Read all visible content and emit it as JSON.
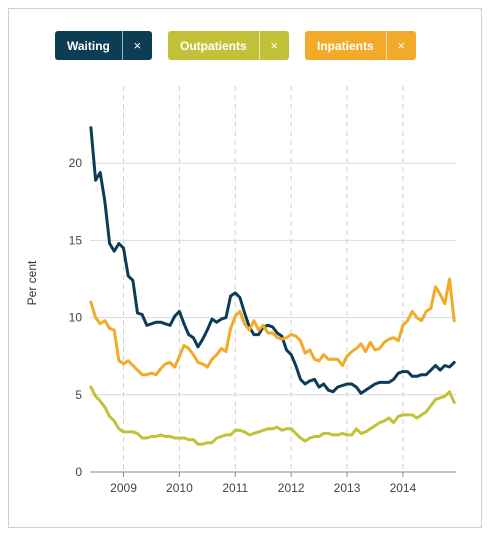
{
  "legend": {
    "items": [
      {
        "label": "Waiting",
        "close": "×",
        "color": "#0d3c55"
      },
      {
        "label": "Outpatients",
        "close": "×",
        "color": "#c2c23a"
      },
      {
        "label": "Inpatients",
        "close": "×",
        "color": "#f2aa2a"
      }
    ]
  },
  "chart_data": {
    "type": "line",
    "ylabel": "Per cent",
    "ylim": [
      0,
      25
    ],
    "yticks": [
      0,
      5,
      10,
      15,
      20
    ],
    "xlim": [
      2008.4,
      2014.95
    ],
    "xticks": [
      2009,
      2010,
      2011,
      2012,
      2013,
      2014
    ],
    "xtick_labels": [
      "2009",
      "2010",
      "2011",
      "2012",
      "2013",
      "2014"
    ],
    "grid": "horizontal solid, vertical dashed at year ticks",
    "series": [
      {
        "name": "Waiting",
        "color": "#0d3c55",
        "x": [
          2008.417,
          2008.5,
          2008.583,
          2008.667,
          2008.75,
          2008.833,
          2008.917,
          2009.0,
          2009.083,
          2009.167,
          2009.25,
          2009.333,
          2009.417,
          2009.5,
          2009.583,
          2009.667,
          2009.75,
          2009.833,
          2009.917,
          2010.0,
          2010.083,
          2010.167,
          2010.25,
          2010.333,
          2010.417,
          2010.5,
          2010.583,
          2010.667,
          2010.75,
          2010.833,
          2010.917,
          2011.0,
          2011.083,
          2011.167,
          2011.25,
          2011.333,
          2011.417,
          2011.5,
          2011.583,
          2011.667,
          2011.75,
          2011.833,
          2011.917,
          2012.0,
          2012.083,
          2012.167,
          2012.25,
          2012.333,
          2012.417,
          2012.5,
          2012.583,
          2012.667,
          2012.75,
          2012.833,
          2012.917,
          2013.0,
          2013.083,
          2013.167,
          2013.25,
          2013.333,
          2013.417,
          2013.5,
          2013.583,
          2013.667,
          2013.75,
          2013.833,
          2013.917,
          2014.0,
          2014.083,
          2014.167,
          2014.25,
          2014.333,
          2014.417,
          2014.5,
          2014.583,
          2014.667,
          2014.75,
          2014.833,
          2014.917
        ],
        "values": [
          22.3,
          18.9,
          19.4,
          17.5,
          14.8,
          14.3,
          14.8,
          14.5,
          12.7,
          12.4,
          10.3,
          10.2,
          9.5,
          9.6,
          9.7,
          9.7,
          9.6,
          9.5,
          10.1,
          10.4,
          9.6,
          8.9,
          8.7,
          8.1,
          8.6,
          9.2,
          9.9,
          9.7,
          9.9,
          10.0,
          11.4,
          11.6,
          11.3,
          10.3,
          9.4,
          8.9,
          8.9,
          9.4,
          9.5,
          9.4,
          9.0,
          8.8,
          7.9,
          7.6,
          6.9,
          6.0,
          5.7,
          5.9,
          6.0,
          5.5,
          5.7,
          5.3,
          5.2,
          5.5,
          5.6,
          5.7,
          5.7,
          5.5,
          5.1,
          5.3,
          5.5,
          5.7,
          5.8,
          5.8,
          5.8,
          6.0,
          6.4,
          6.5,
          6.5,
          6.2,
          6.2,
          6.3,
          6.3,
          6.6,
          6.9,
          6.6,
          6.9,
          6.8,
          7.1
        ]
      },
      {
        "name": "Outpatients",
        "color": "#c2c23a",
        "x": [
          2008.417,
          2008.5,
          2008.583,
          2008.667,
          2008.75,
          2008.833,
          2008.917,
          2009.0,
          2009.083,
          2009.167,
          2009.25,
          2009.333,
          2009.417,
          2009.5,
          2009.583,
          2009.667,
          2009.75,
          2009.833,
          2009.917,
          2010.0,
          2010.083,
          2010.167,
          2010.25,
          2010.333,
          2010.417,
          2010.5,
          2010.583,
          2010.667,
          2010.75,
          2010.833,
          2010.917,
          2011.0,
          2011.083,
          2011.167,
          2011.25,
          2011.333,
          2011.417,
          2011.5,
          2011.583,
          2011.667,
          2011.75,
          2011.833,
          2011.917,
          2012.0,
          2012.083,
          2012.167,
          2012.25,
          2012.333,
          2012.417,
          2012.5,
          2012.583,
          2012.667,
          2012.75,
          2012.833,
          2012.917,
          2013.0,
          2013.083,
          2013.167,
          2013.25,
          2013.333,
          2013.417,
          2013.5,
          2013.583,
          2013.667,
          2013.75,
          2013.833,
          2013.917,
          2014.0,
          2014.083,
          2014.167,
          2014.25,
          2014.333,
          2014.417,
          2014.5,
          2014.583,
          2014.667,
          2014.75,
          2014.833,
          2014.917
        ],
        "values": [
          5.5,
          4.9,
          4.6,
          4.2,
          3.6,
          3.3,
          2.8,
          2.6,
          2.6,
          2.6,
          2.5,
          2.2,
          2.2,
          2.3,
          2.3,
          2.4,
          2.3,
          2.3,
          2.2,
          2.2,
          2.2,
          2.1,
          2.1,
          1.8,
          1.8,
          1.9,
          1.9,
          2.2,
          2.3,
          2.4,
          2.4,
          2.7,
          2.7,
          2.6,
          2.4,
          2.5,
          2.6,
          2.7,
          2.8,
          2.8,
          2.9,
          2.7,
          2.8,
          2.8,
          2.5,
          2.2,
          2.0,
          2.2,
          2.3,
          2.3,
          2.5,
          2.5,
          2.4,
          2.4,
          2.5,
          2.4,
          2.4,
          2.8,
          2.5,
          2.6,
          2.8,
          3.0,
          3.2,
          3.3,
          3.5,
          3.2,
          3.6,
          3.7,
          3.7,
          3.7,
          3.5,
          3.7,
          3.9,
          4.3,
          4.7,
          4.8,
          4.9,
          5.2,
          4.5
        ]
      },
      {
        "name": "Inpatients",
        "color": "#f2aa2a",
        "x": [
          2008.417,
          2008.5,
          2008.583,
          2008.667,
          2008.75,
          2008.833,
          2008.917,
          2009.0,
          2009.083,
          2009.167,
          2009.25,
          2009.333,
          2009.417,
          2009.5,
          2009.583,
          2009.667,
          2009.75,
          2009.833,
          2009.917,
          2010.0,
          2010.083,
          2010.167,
          2010.25,
          2010.333,
          2010.417,
          2010.5,
          2010.583,
          2010.667,
          2010.75,
          2010.833,
          2010.917,
          2011.0,
          2011.083,
          2011.167,
          2011.25,
          2011.333,
          2011.417,
          2011.5,
          2011.583,
          2011.667,
          2011.75,
          2011.833,
          2011.917,
          2012.0,
          2012.083,
          2012.167,
          2012.25,
          2012.333,
          2012.417,
          2012.5,
          2012.583,
          2012.667,
          2012.75,
          2012.833,
          2012.917,
          2013.0,
          2013.083,
          2013.167,
          2013.25,
          2013.333,
          2013.417,
          2013.5,
          2013.583,
          2013.667,
          2013.75,
          2013.833,
          2013.917,
          2014.0,
          2014.083,
          2014.167,
          2014.25,
          2014.333,
          2014.417,
          2014.5,
          2014.583,
          2014.667,
          2014.75,
          2014.833,
          2014.917
        ],
        "values": [
          11.0,
          10.0,
          9.6,
          9.8,
          9.3,
          9.2,
          7.2,
          7.0,
          7.2,
          6.9,
          6.6,
          6.3,
          6.3,
          6.4,
          6.3,
          6.7,
          7.0,
          7.1,
          6.8,
          7.5,
          8.2,
          8.0,
          7.6,
          7.1,
          7.0,
          6.8,
          7.3,
          7.6,
          8.0,
          7.8,
          9.3,
          10.1,
          10.4,
          9.6,
          9.2,
          9.8,
          9.2,
          9.5,
          9.0,
          9.0,
          8.7,
          8.6,
          8.7,
          8.9,
          8.8,
          8.5,
          7.7,
          7.9,
          7.3,
          7.2,
          7.6,
          7.3,
          7.3,
          7.3,
          6.9,
          7.5,
          7.8,
          8.0,
          8.3,
          7.8,
          8.4,
          7.9,
          8.0,
          8.4,
          8.6,
          8.7,
          8.5,
          9.5,
          9.8,
          10.4,
          10.0,
          9.8,
          10.4,
          10.6,
          12.0,
          11.5,
          10.9,
          12.5,
          9.8
        ]
      }
    ]
  }
}
